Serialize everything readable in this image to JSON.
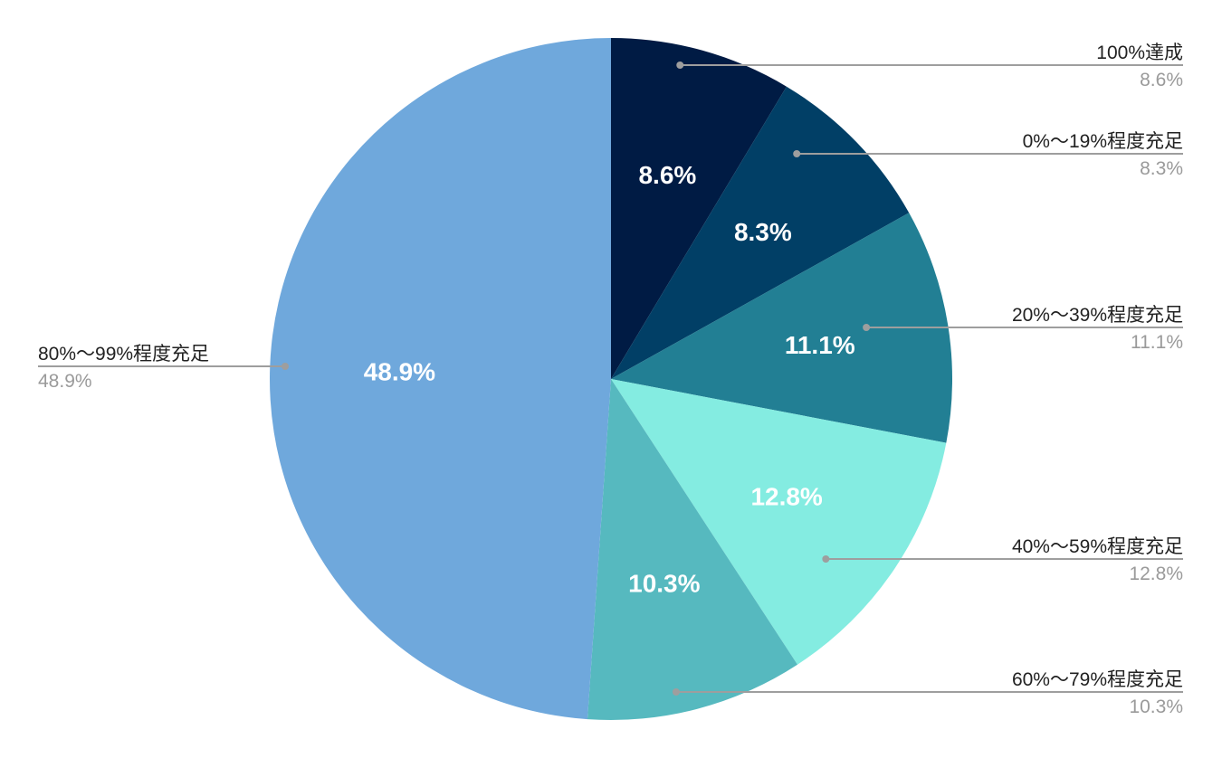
{
  "chart_data": {
    "type": "pie",
    "title": "",
    "start_angle_deg": 0,
    "direction": "clockwise",
    "slices": [
      {
        "name": "100%達成",
        "value": 8.6,
        "label": "8.6%",
        "color": "#001b44"
      },
      {
        "name": "0%〜19%程度充足",
        "value": 8.3,
        "label": "8.3%",
        "color": "#013f66"
      },
      {
        "name": "20%〜39%程度充足",
        "value": 11.1,
        "label": "11.1%",
        "color": "#227f94"
      },
      {
        "name": "40%〜59%程度充足",
        "value": 12.8,
        "label": "12.8%",
        "color": "#84ece1"
      },
      {
        "name": "60%〜79%程度充足",
        "value": 10.3,
        "label": "10.3%",
        "color": "#56b9bf"
      },
      {
        "name": "80%〜99%程度充足",
        "value": 48.9,
        "label": "48.9%",
        "color": "#6fa8dc"
      }
    ],
    "legend": "callouts"
  }
}
